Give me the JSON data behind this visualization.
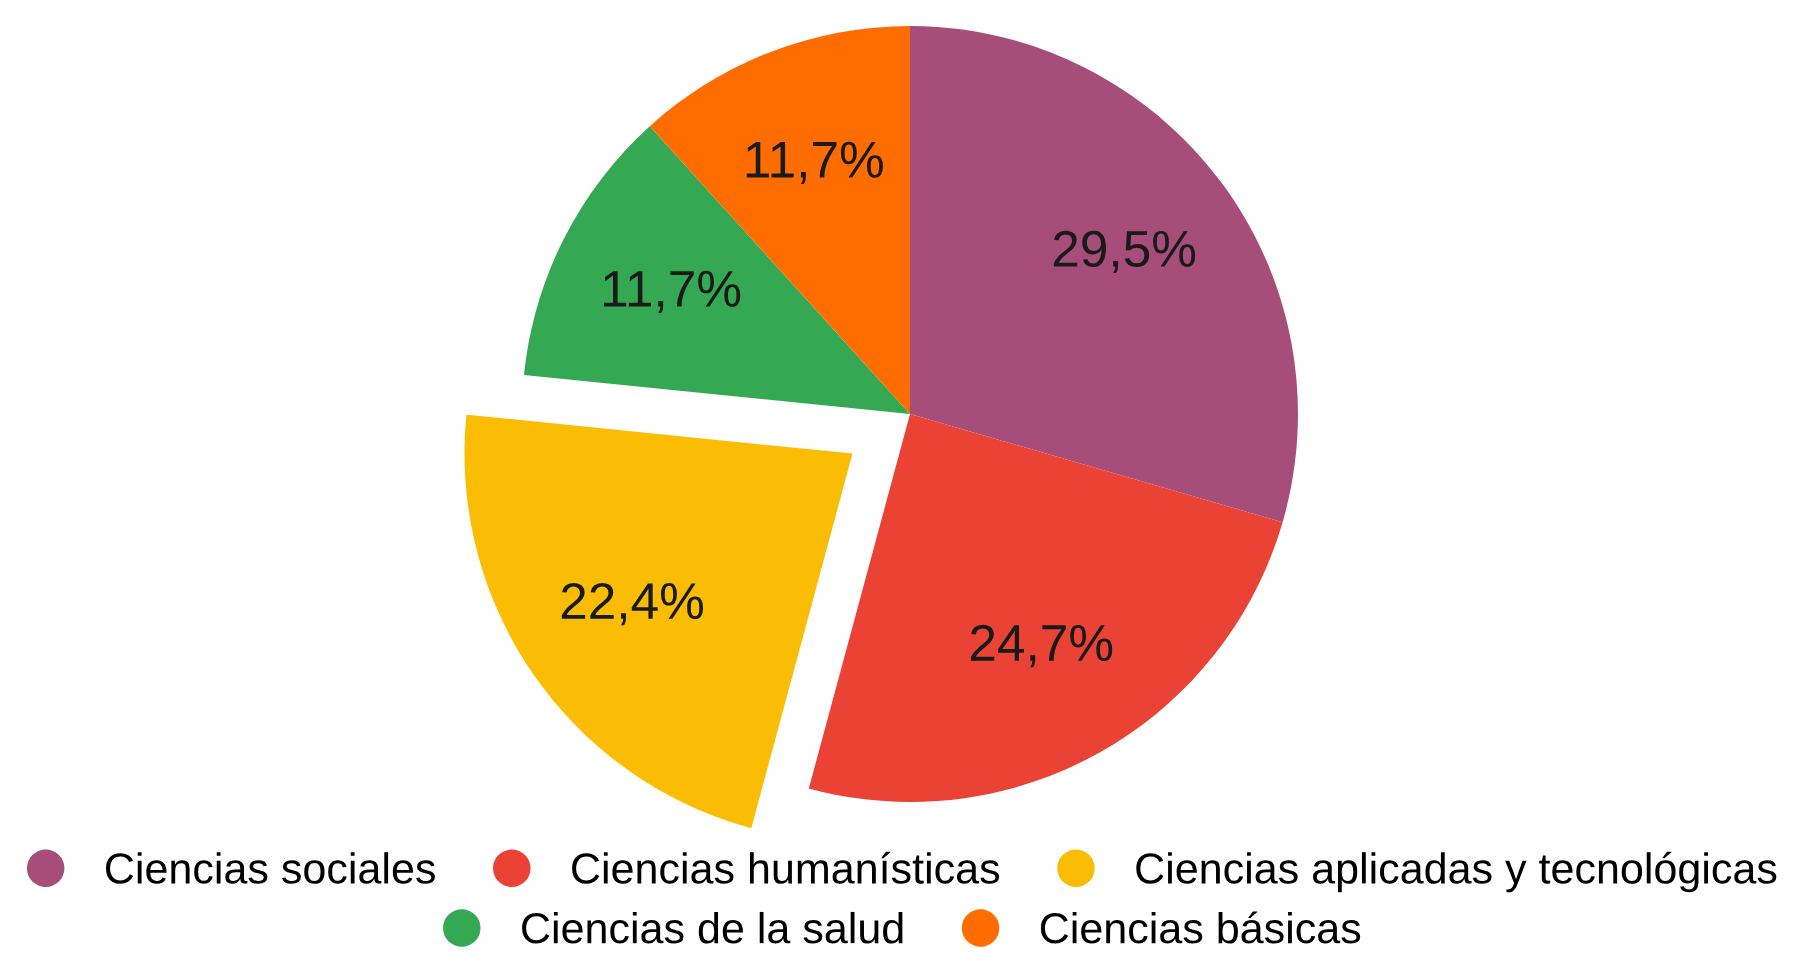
{
  "chart_data": {
    "type": "pie",
    "categories": [
      "Ciencias sociales",
      "Ciencias humanísticas",
      "Ciencias aplicadas y tecnológicas",
      "Ciencias de la salud",
      "Ciencias básicas"
    ],
    "values": [
      29.5,
      24.7,
      22.4,
      11.7,
      11.7
    ],
    "colors": [
      "#a64d79",
      "#ea4335",
      "#fbbc04",
      "#34a853",
      "#ff6d01"
    ],
    "value_labels": [
      "29,5%",
      "24,7%",
      "22,4%",
      "11,7%",
      "11,7%"
    ],
    "legend": "bottom"
  }
}
